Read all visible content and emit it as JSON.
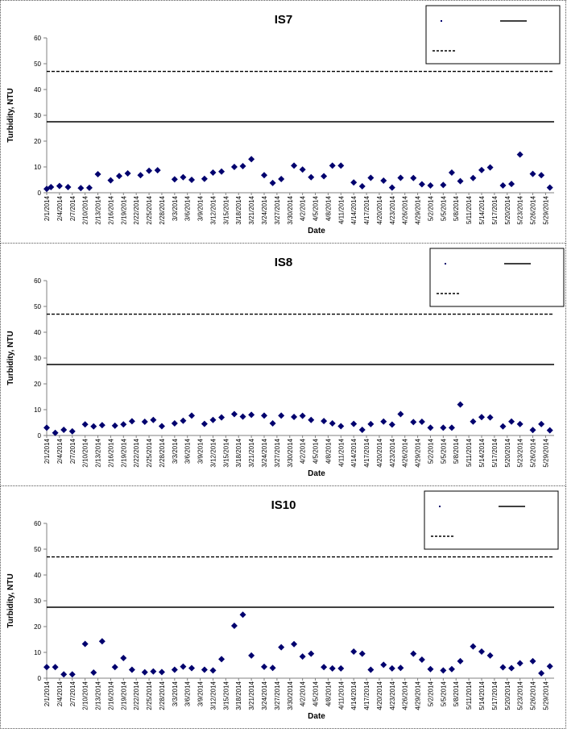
{
  "chart_data": [
    {
      "type": "scatter",
      "title": "IS7",
      "xlabel": "Date",
      "ylabel": "Turbidity, NTU",
      "ylim": [
        0,
        60
      ],
      "yticks": [
        0,
        10,
        20,
        30,
        40,
        50,
        60
      ],
      "xlim": [
        "2/1/2014",
        "5/31/2014"
      ],
      "xticks": [
        "2/1/2014",
        "2/4/2014",
        "2/7/2014",
        "2/10/2014",
        "2/13/2014",
        "2/16/2014",
        "2/19/2014",
        "2/22/2014",
        "2/25/2014",
        "2/28/2014",
        "3/3/2014",
        "3/6/2014",
        "3/9/2014",
        "3/12/2014",
        "3/15/2014",
        "3/18/2014",
        "3/21/2014",
        "3/24/2014",
        "3/27/2014",
        "3/30/2014",
        "4/2/2014",
        "4/5/2014",
        "4/8/2014",
        "4/11/2014",
        "4/14/2014",
        "4/17/2014",
        "4/20/2014",
        "4/23/2014",
        "4/26/2014",
        "4/29/2014",
        "5/2/2014",
        "5/5/2014",
        "5/8/2014",
        "5/11/2014",
        "5/14/2014",
        "5/17/2014",
        "5/20/2014",
        "5/23/2014",
        "5/26/2014",
        "5/29/2014"
      ],
      "legend_position": "top-right",
      "reference_lines": [
        {
          "y": 27.5,
          "style": "solid"
        },
        {
          "y": 47,
          "style": "dashed"
        }
      ],
      "points": [
        [
          "2/1/2014",
          1.5
        ],
        [
          "2/2/2014",
          2.2
        ],
        [
          "2/4/2014",
          2.6
        ],
        [
          "2/6/2014",
          2.2
        ],
        [
          "2/9/2014",
          1.8
        ],
        [
          "2/11/2014",
          1.9
        ],
        [
          "2/13/2014",
          7.2
        ],
        [
          "2/16/2014",
          4.8
        ],
        [
          "2/18/2014",
          6.5
        ],
        [
          "2/20/2014",
          7.5
        ],
        [
          "2/23/2014",
          6.8
        ],
        [
          "2/25/2014",
          8.5
        ],
        [
          "2/27/2014",
          8.7
        ],
        [
          "3/3/2014",
          5.2
        ],
        [
          "3/5/2014",
          6.0
        ],
        [
          "3/7/2014",
          5.0
        ],
        [
          "3/10/2014",
          5.4
        ],
        [
          "3/12/2014",
          7.8
        ],
        [
          "3/14/2014",
          8.2
        ],
        [
          "3/17/2014",
          10.0
        ],
        [
          "3/19/2014",
          10.3
        ],
        [
          "3/21/2014",
          13.0
        ],
        [
          "3/24/2014",
          6.8
        ],
        [
          "3/26/2014",
          3.8
        ],
        [
          "3/28/2014",
          5.3
        ],
        [
          "3/31/2014",
          10.5
        ],
        [
          "4/2/2014",
          9.0
        ],
        [
          "4/4/2014",
          6.0
        ],
        [
          "4/7/2014",
          6.4
        ],
        [
          "4/9/2014",
          10.5
        ],
        [
          "4/11/2014",
          10.5
        ],
        [
          "4/14/2014",
          4.0
        ],
        [
          "4/16/2014",
          2.5
        ],
        [
          "4/18/2014",
          5.8
        ],
        [
          "4/21/2014",
          4.7
        ],
        [
          "4/23/2014",
          2.0
        ],
        [
          "4/25/2014",
          5.8
        ],
        [
          "4/28/2014",
          5.7
        ],
        [
          "4/30/2014",
          3.3
        ],
        [
          "5/2/2014",
          2.8
        ],
        [
          "5/5/2014",
          3.0
        ],
        [
          "5/7/2014",
          7.8
        ],
        [
          "5/9/2014",
          4.5
        ],
        [
          "5/12/2014",
          5.7
        ],
        [
          "5/14/2014",
          8.8
        ],
        [
          "5/16/2014",
          9.8
        ],
        [
          "5/19/2014",
          2.8
        ],
        [
          "5/21/2014",
          3.4
        ],
        [
          "5/23/2014",
          14.8
        ],
        [
          "5/26/2014",
          7.3
        ],
        [
          "5/28/2014",
          6.8
        ],
        [
          "5/30/2014",
          2.0
        ]
      ]
    },
    {
      "type": "scatter",
      "title": "IS8",
      "xlabel": "Date",
      "ylabel": "Turbidity, NTU",
      "ylim": [
        0,
        60
      ],
      "yticks": [
        0,
        10,
        20,
        30,
        40,
        50,
        60
      ],
      "xlim": [
        "2/1/2014",
        "5/31/2014"
      ],
      "xticks": [
        "2/1/2014",
        "2/4/2014",
        "2/7/2014",
        "2/10/2014",
        "2/13/2014",
        "2/16/2014",
        "2/19/2014",
        "2/22/2014",
        "2/25/2014",
        "2/28/2014",
        "3/3/2014",
        "3/6/2014",
        "3/9/2014",
        "3/12/2014",
        "3/15/2014",
        "3/18/2014",
        "3/21/2014",
        "3/24/2014",
        "3/27/2014",
        "3/30/2014",
        "4/2/2014",
        "4/5/2014",
        "4/8/2014",
        "4/11/2014",
        "4/14/2014",
        "4/17/2014",
        "4/20/2014",
        "4/23/2014",
        "4/26/2014",
        "4/29/2014",
        "5/2/2014",
        "5/5/2014",
        "5/8/2014",
        "5/11/2014",
        "5/14/2014",
        "5/17/2014",
        "5/20/2014",
        "5/23/2014",
        "5/26/2014",
        "5/29/2014"
      ],
      "legend_position": "top-right",
      "reference_lines": [
        {
          "y": 27.5,
          "style": "solid"
        },
        {
          "y": 47,
          "style": "dashed"
        }
      ],
      "points": [
        [
          "2/1/2014",
          3.0
        ],
        [
          "2/3/2014",
          1.0
        ],
        [
          "2/5/2014",
          2.2
        ],
        [
          "2/7/2014",
          1.6
        ],
        [
          "2/10/2014",
          4.3
        ],
        [
          "2/12/2014",
          3.5
        ],
        [
          "2/14/2014",
          4.0
        ],
        [
          "2/17/2014",
          3.8
        ],
        [
          "2/19/2014",
          4.3
        ],
        [
          "2/21/2014",
          5.5
        ],
        [
          "2/24/2014",
          5.3
        ],
        [
          "2/26/2014",
          6.0
        ],
        [
          "2/28/2014",
          3.6
        ],
        [
          "3/3/2014",
          4.7
        ],
        [
          "3/5/2014",
          5.7
        ],
        [
          "3/7/2014",
          7.7
        ],
        [
          "3/10/2014",
          4.5
        ],
        [
          "3/12/2014",
          6.0
        ],
        [
          "3/14/2014",
          7.0
        ],
        [
          "3/17/2014",
          8.3
        ],
        [
          "3/19/2014",
          7.3
        ],
        [
          "3/21/2014",
          8.0
        ],
        [
          "3/24/2014",
          7.7
        ],
        [
          "3/26/2014",
          4.7
        ],
        [
          "3/28/2014",
          7.7
        ],
        [
          "3/31/2014",
          7.2
        ],
        [
          "4/2/2014",
          7.6
        ],
        [
          "4/4/2014",
          6.0
        ],
        [
          "4/7/2014",
          5.6
        ],
        [
          "4/9/2014",
          4.7
        ],
        [
          "4/11/2014",
          3.6
        ],
        [
          "4/14/2014",
          4.5
        ],
        [
          "4/16/2014",
          2.2
        ],
        [
          "4/18/2014",
          4.4
        ],
        [
          "4/21/2014",
          5.4
        ],
        [
          "4/23/2014",
          4.2
        ],
        [
          "4/25/2014",
          8.3
        ],
        [
          "4/28/2014",
          5.2
        ],
        [
          "4/30/2014",
          5.3
        ],
        [
          "5/2/2014",
          3.0
        ],
        [
          "5/5/2014",
          3.0
        ],
        [
          "5/7/2014",
          3.0
        ],
        [
          "5/9/2014",
          12.0
        ],
        [
          "5/12/2014",
          5.4
        ],
        [
          "5/14/2014",
          7.1
        ],
        [
          "5/16/2014",
          7.0
        ],
        [
          "5/19/2014",
          3.5
        ],
        [
          "5/21/2014",
          5.4
        ],
        [
          "5/23/2014",
          4.4
        ],
        [
          "5/26/2014",
          2.1
        ],
        [
          "5/28/2014",
          4.4
        ],
        [
          "5/30/2014",
          2.0
        ]
      ]
    },
    {
      "type": "scatter",
      "title": "IS10",
      "xlabel": "Date",
      "ylabel": "Turbidity, NTU",
      "ylim": [
        0,
        60
      ],
      "yticks": [
        0,
        10,
        20,
        30,
        40,
        50,
        60
      ],
      "xlim": [
        "2/1/2014",
        "5/31/2014"
      ],
      "xticks": [
        "2/1/2014",
        "2/4/2014",
        "2/7/2014",
        "2/10/2014",
        "2/13/2014",
        "2/16/2014",
        "2/19/2014",
        "2/22/2014",
        "2/25/2014",
        "2/28/2014",
        "3/3/2014",
        "3/6/2014",
        "3/9/2014",
        "3/12/2014",
        "3/15/2014",
        "3/18/2014",
        "3/21/2014",
        "3/24/2014",
        "3/27/2014",
        "3/30/2014",
        "4/2/2014",
        "4/5/2014",
        "4/8/2014",
        "4/11/2014",
        "4/14/2014",
        "4/17/2014",
        "4/20/2014",
        "4/23/2014",
        "4/26/2014",
        "4/29/2014",
        "5/2/2014",
        "5/5/2014",
        "5/8/2014",
        "5/11/2014",
        "5/14/2014",
        "5/17/2014",
        "5/20/2014",
        "5/23/2014",
        "5/26/2014",
        "5/29/2014"
      ],
      "legend_position": "top-right",
      "reference_lines": [
        {
          "y": 27.5,
          "style": "solid"
        },
        {
          "y": 47,
          "style": "dashed"
        }
      ],
      "points": [
        [
          "2/1/2014",
          4.3
        ],
        [
          "2/3/2014",
          4.3
        ],
        [
          "2/5/2014",
          1.5
        ],
        [
          "2/7/2014",
          1.5
        ],
        [
          "2/10/2014",
          13.3
        ],
        [
          "2/12/2014",
          2.2
        ],
        [
          "2/14/2014",
          14.3
        ],
        [
          "2/17/2014",
          4.3
        ],
        [
          "2/19/2014",
          7.8
        ],
        [
          "2/21/2014",
          3.3
        ],
        [
          "2/24/2014",
          2.3
        ],
        [
          "2/26/2014",
          2.6
        ],
        [
          "2/28/2014",
          2.4
        ],
        [
          "3/3/2014",
          3.3
        ],
        [
          "3/5/2014",
          4.5
        ],
        [
          "3/7/2014",
          3.9
        ],
        [
          "3/10/2014",
          3.3
        ],
        [
          "3/12/2014",
          3.0
        ],
        [
          "3/14/2014",
          7.4
        ],
        [
          "3/17/2014",
          20.3
        ],
        [
          "3/19/2014",
          24.6
        ],
        [
          "3/21/2014",
          8.8
        ],
        [
          "3/24/2014",
          4.4
        ],
        [
          "3/26/2014",
          4.0
        ],
        [
          "3/28/2014",
          12.0
        ],
        [
          "3/31/2014",
          13.2
        ],
        [
          "4/2/2014",
          8.4
        ],
        [
          "4/4/2014",
          9.5
        ],
        [
          "4/7/2014",
          4.3
        ],
        [
          "4/9/2014",
          3.8
        ],
        [
          "4/11/2014",
          3.8
        ],
        [
          "4/14/2014",
          10.3
        ],
        [
          "4/16/2014",
          9.5
        ],
        [
          "4/18/2014",
          3.3
        ],
        [
          "4/21/2014",
          5.2
        ],
        [
          "4/23/2014",
          3.8
        ],
        [
          "4/25/2014",
          4.0
        ],
        [
          "4/28/2014",
          9.5
        ],
        [
          "4/30/2014",
          7.2
        ],
        [
          "5/2/2014",
          3.5
        ],
        [
          "5/5/2014",
          3.0
        ],
        [
          "5/7/2014",
          3.5
        ],
        [
          "5/9/2014",
          6.6
        ],
        [
          "5/12/2014",
          12.3
        ],
        [
          "5/14/2014",
          10.3
        ],
        [
          "5/16/2014",
          8.8
        ],
        [
          "5/19/2014",
          4.2
        ],
        [
          "5/21/2014",
          3.9
        ],
        [
          "5/23/2014",
          5.8
        ],
        [
          "5/26/2014",
          6.6
        ],
        [
          "5/28/2014",
          1.9
        ],
        [
          "5/30/2014",
          4.6
        ]
      ]
    }
  ],
  "colors": {
    "marker": "#00006e",
    "axis": "#808080",
    "reference_line": "#000000"
  }
}
